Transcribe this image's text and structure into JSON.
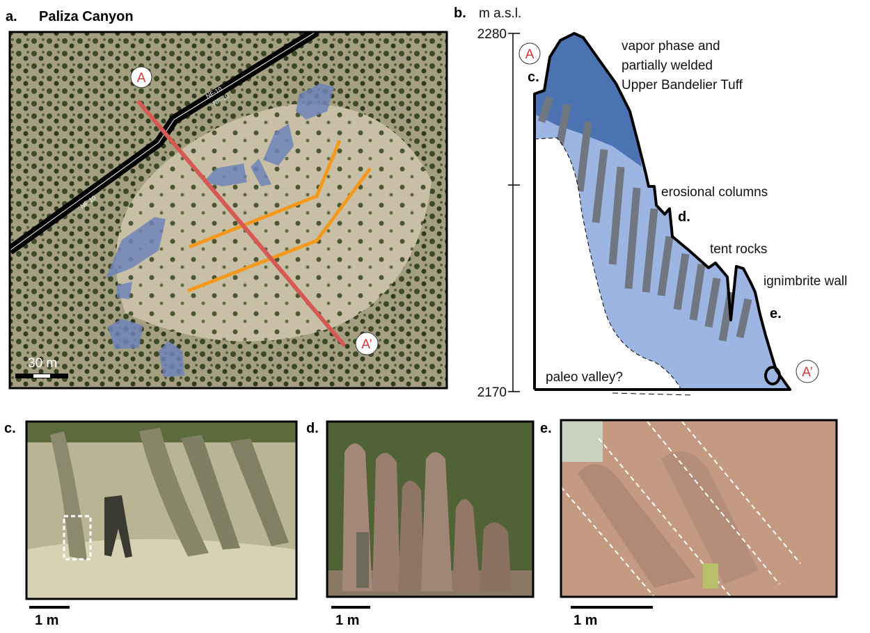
{
  "panel_a": {
    "label": "a.",
    "title": "Paliza  Canyon",
    "markers": [
      "A",
      "A’"
    ],
    "road_labels": [
      "NF-10",
      "NF-10",
      "NF-10"
    ],
    "scale_bar": "30 m"
  },
  "panel_b": {
    "label": "b.",
    "axis_unit": "m a.s.l.",
    "axis_top": 2280,
    "axis_bottom": 2170,
    "markers": [
      "A",
      "A’"
    ],
    "annotations": [
      "c.",
      "vapor phase and",
      "partially welded",
      "Upper Bandelier Tuff",
      "erosional columns",
      "d.",
      "tent rocks",
      "ignimbrite wall",
      "e.",
      "paleo valley?"
    ]
  },
  "photos": [
    {
      "label": "c.",
      "scale_bar": "1 m"
    },
    {
      "label": "d.",
      "scale_bar": "1 m"
    },
    {
      "label": "e.",
      "scale_bar": "1 m"
    }
  ]
}
